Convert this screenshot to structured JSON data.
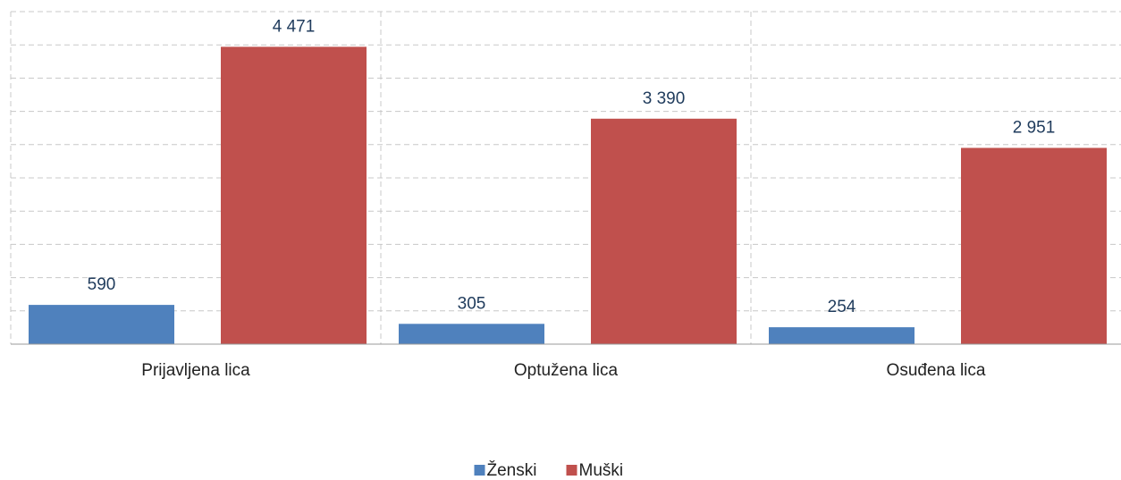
{
  "chart_data": {
    "type": "bar",
    "categories": [
      "Prijavljena lica",
      "Optužena lica",
      "Osuđena lica"
    ],
    "series": [
      {
        "name": "Ženski",
        "color": "#4f81bd",
        "values": [
          590,
          305,
          254
        ],
        "value_labels": [
          "590",
          "305",
          "254"
        ]
      },
      {
        "name": "Muški",
        "color": "#c0504d",
        "values": [
          4471,
          3390,
          2951
        ],
        "value_labels": [
          "4 471",
          "3 390",
          "2 951"
        ]
      }
    ],
    "ylim": [
      0,
      5000
    ],
    "yticks": [
      0,
      500,
      1000,
      1500,
      2000,
      2500,
      3000,
      3500,
      4000,
      4500,
      5000
    ],
    "grid": true,
    "legend": "bottom"
  }
}
